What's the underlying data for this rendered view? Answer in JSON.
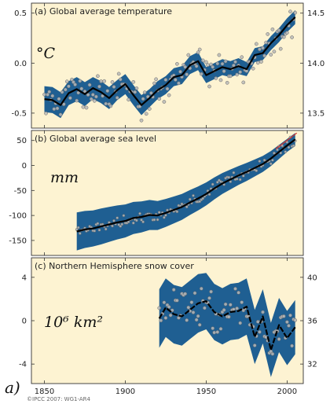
{
  "figure_label": "a)",
  "credit": "©IPCC 2007: WG1-AR4",
  "colors": {
    "panel_bg": "#fdf3d2",
    "band": "#1f5f92",
    "smooth": "#000000",
    "points": "#b9b9b9",
    "trend": "#d9342b"
  },
  "chart_data": [
    {
      "type": "line",
      "title": "(a) Global average temperature",
      "unit_label": "°C",
      "xlim": [
        1842,
        2010
      ],
      "ylim": [
        -0.65,
        0.6
      ],
      "ylim_right": [
        13.35,
        14.6
      ],
      "left_ticks": [
        "0.5",
        "0.0",
        "-0.5"
      ],
      "left_tick_values": [
        0.5,
        0,
        -0.5
      ],
      "right_ticks": [
        "14.5",
        "14.0",
        "13.5"
      ],
      "right_tick_values": [
        0.5,
        0,
        -0.5
      ],
      "x_ticks": [
        1850,
        1900,
        1950,
        2000
      ],
      "smooth_line": {
        "x": [
          1850,
          1855,
          1860,
          1865,
          1870,
          1875,
          1880,
          1885,
          1890,
          1895,
          1900,
          1905,
          1910,
          1915,
          1920,
          1925,
          1930,
          1935,
          1940,
          1945,
          1950,
          1955,
          1960,
          1965,
          1970,
          1975,
          1980,
          1985,
          1990,
          1995,
          2000,
          2005
        ],
        "y": [
          -0.36,
          -0.37,
          -0.42,
          -0.3,
          -0.26,
          -0.31,
          -0.25,
          -0.29,
          -0.35,
          -0.27,
          -0.21,
          -0.32,
          -0.42,
          -0.35,
          -0.27,
          -0.22,
          -0.14,
          -0.12,
          -0.02,
          0.02,
          -0.12,
          -0.08,
          -0.04,
          -0.06,
          -0.03,
          -0.06,
          0.08,
          0.1,
          0.2,
          0.28,
          0.38,
          0.46
        ]
      },
      "band_halfwidth": [
        0.13,
        0.13,
        0.13,
        0.12,
        0.12,
        0.12,
        0.11,
        0.11,
        0.11,
        0.1,
        0.1,
        0.1,
        0.1,
        0.09,
        0.09,
        0.09,
        0.09,
        0.09,
        0.09,
        0.09,
        0.08,
        0.08,
        0.08,
        0.08,
        0.08,
        0.07,
        0.07,
        0.07,
        0.07,
        0.07,
        0.07,
        0.07
      ],
      "point_scatter": 0.12
    },
    {
      "type": "line",
      "title": "(b) Global average sea level",
      "unit_label": "mm",
      "xlim": [
        1842,
        2010
      ],
      "ylim": [
        -180,
        70
      ],
      "left_ticks": [
        "50",
        "0",
        "-50",
        "-100",
        "-150"
      ],
      "left_tick_values": [
        50,
        0,
        -50,
        -100,
        -150
      ],
      "right_ticks": [],
      "right_tick_values": [],
      "x_ticks": [
        1850,
        1900,
        1950,
        2000
      ],
      "smooth_line": {
        "x": [
          1870,
          1875,
          1880,
          1885,
          1890,
          1895,
          1900,
          1905,
          1910,
          1915,
          1920,
          1925,
          1930,
          1935,
          1940,
          1945,
          1950,
          1955,
          1960,
          1965,
          1970,
          1975,
          1980,
          1985,
          1990,
          1995,
          2000,
          2005
        ],
        "y": [
          -132,
          -128,
          -126,
          -122,
          -118,
          -114,
          -111,
          -105,
          -103,
          -99,
          -100,
          -95,
          -89,
          -83,
          -74,
          -66,
          -57,
          -46,
          -36,
          -28,
          -20,
          -13,
          -5,
          3,
          14,
          27,
          40,
          52
        ]
      },
      "band_halfwidth": [
        38,
        37,
        36,
        36,
        35,
        34,
        33,
        32,
        31,
        30,
        29,
        28,
        27,
        26,
        25,
        24,
        23,
        22,
        21,
        20,
        19,
        18,
        17,
        16,
        15,
        14,
        13,
        13
      ],
      "point_scatter": 8,
      "trend_line": {
        "x": [
          1993,
          2006
        ],
        "y": [
          33,
          65
        ]
      }
    },
    {
      "type": "line",
      "title": "(c) Northern Hemisphere snow cover",
      "unit_label": "10⁶ km²",
      "xlim": [
        1842,
        2010
      ],
      "ylim": [
        -5.8,
        5.8
      ],
      "ylim_right": [
        30.2,
        41.8
      ],
      "left_ticks": [
        "4",
        "0",
        "-4"
      ],
      "left_tick_values": [
        4,
        0,
        -4
      ],
      "right_ticks": [
        "40",
        "36",
        "32"
      ],
      "right_tick_values": [
        4,
        0,
        -4
      ],
      "x_ticks": [
        1850,
        1900,
        1950,
        2000
      ],
      "smooth_line": {
        "x": [
          1921,
          1925,
          1930,
          1935,
          1940,
          1945,
          1950,
          1955,
          1960,
          1965,
          1970,
          1975,
          1980,
          1985,
          1990,
          1995,
          2000,
          2005
        ],
        "y": [
          0.2,
          1.2,
          0.6,
          0.4,
          1.0,
          1.6,
          1.8,
          0.8,
          0.4,
          0.8,
          0.9,
          1.3,
          -1.5,
          0.4,
          -2.7,
          -0.4,
          -1.6,
          -0.6
        ]
      },
      "band_halfwidth": [
        2.7,
        2.7,
        2.7,
        2.7,
        2.7,
        2.7,
        2.6,
        2.6,
        2.6,
        2.6,
        2.6,
        2.6,
        2.5,
        2.5,
        2.5,
        2.5,
        2.5,
        2.5
      ],
      "point_scatter": 1.6
    }
  ]
}
